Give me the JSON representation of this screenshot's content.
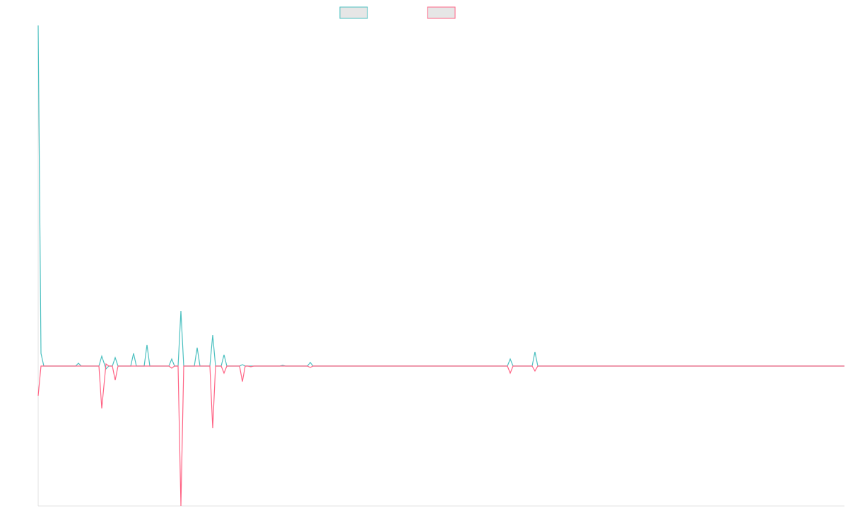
{
  "chart_data": {
    "type": "line",
    "x": [
      0,
      4,
      8,
      53,
      57,
      61,
      86,
      90,
      96,
      100,
      105,
      109,
      113,
      131,
      135,
      139,
      150,
      154,
      158,
      185,
      189,
      193,
      198,
      202,
      206,
      221,
      225,
      229,
      243,
      247,
      251,
      259,
      263,
      267,
      285,
      289,
      293,
      297,
      301,
      305,
      342,
      346,
      350,
      381,
      385,
      389,
      664,
      668,
      672,
      699,
      703,
      707,
      1141
    ],
    "series": [
      {
        "color": "#4bc0c0",
        "values": [
          482,
          18,
          0,
          0,
          4,
          0,
          0,
          14,
          -4,
          0,
          0,
          12,
          0,
          0,
          18,
          0,
          0,
          30,
          0,
          0,
          10,
          0,
          0,
          78,
          0,
          0,
          26,
          0,
          0,
          44,
          0,
          0,
          16,
          0,
          0,
          2,
          0,
          0,
          0,
          0,
          0,
          1,
          0,
          0,
          5,
          0,
          0,
          10,
          0,
          0,
          20,
          0,
          0
        ]
      },
      {
        "color": "#ff6384",
        "values": [
          -42,
          0,
          0,
          0,
          0,
          0,
          0,
          -60,
          3,
          0,
          0,
          -20,
          0,
          0,
          0,
          0,
          0,
          0,
          0,
          0,
          -3,
          0,
          0,
          -198,
          0,
          0,
          0,
          0,
          0,
          -88,
          0,
          0,
          -10,
          0,
          0,
          -22,
          0,
          0,
          -1,
          0,
          0,
          0,
          0,
          0,
          -2,
          0,
          0,
          -10,
          0,
          0,
          -7,
          0,
          0
        ]
      }
    ],
    "xlim": [
      0,
      1141
    ],
    "ylim": [
      -198,
      482
    ]
  }
}
